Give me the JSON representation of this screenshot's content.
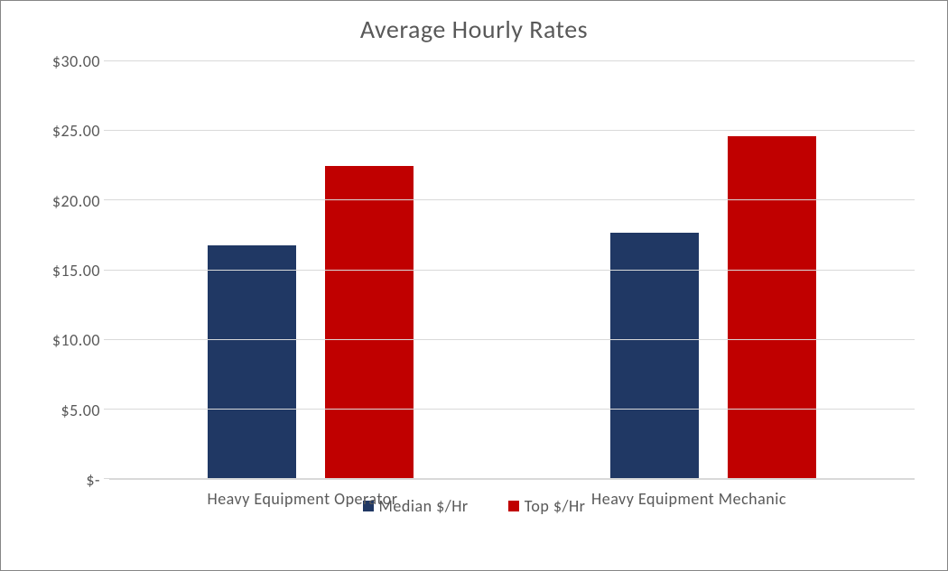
{
  "chart": {
    "type": "bar",
    "title": "Average Hourly Rates",
    "title_fontsize": 28,
    "title_color": "#595959",
    "background_color": "#ffffff",
    "border_color": "#868686",
    "grid_color": "#d9d9d9",
    "axis_label_color": "#595959",
    "axis_label_fontsize": 18,
    "font_family": "Calibri",
    "y": {
      "min": 0,
      "max": 30,
      "tick_step": 5,
      "ticks": [
        {
          "value": 0,
          "label": "$-"
        },
        {
          "value": 5,
          "label": "$5.00"
        },
        {
          "value": 10,
          "label": "$10.00"
        },
        {
          "value": 15,
          "label": "$15.00"
        },
        {
          "value": 20,
          "label": "$20.00"
        },
        {
          "value": 25,
          "label": "$25.00"
        },
        {
          "value": 30,
          "label": "$30.00"
        }
      ]
    },
    "categories": [
      "Heavy Equipment Operator",
      "Heavy Equipment Mechanic"
    ],
    "series": [
      {
        "name": "Median $/Hr",
        "color": "#203864",
        "values": [
          16.8,
          17.7
        ]
      },
      {
        "name": "Top $/Hr",
        "color": "#c00000",
        "values": [
          22.5,
          24.6
        ]
      }
    ],
    "bar_width_pct": 22,
    "bar_gap_pct": 7,
    "group_center_offset_pct": 0
  }
}
